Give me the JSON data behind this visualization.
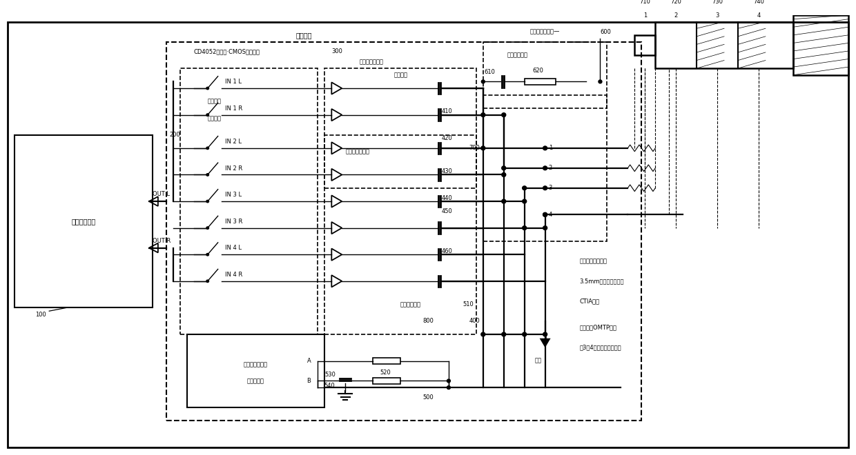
{
  "bg_color": "#ffffff",
  "labels": {
    "audio_app": "音频应用电路",
    "ref_100": "100",
    "ic_label": "集成电路",
    "cd4052_label": "CD4052双四选·CMOS模拟开关",
    "logic_ctrl1": "送辑控制",
    "logic_ctrl2": "切换开关",
    "sw_ctrl1": "开关送辑控制器",
    "sw_ctrl2": "地址位译码",
    "amp_match": "音频放大与匹配",
    "coupling_cap": "耦合电容",
    "mic_amp": "话筒放大与匹配",
    "ctrl_filter": "控制电压滤波",
    "bias_pwr": "馻极体偏置电源—",
    "bias_pos": "偏置电源正极",
    "port_4pin": "四脚音频输入接口",
    "port_35mm": "3.5mm四端子耳机插座",
    "port_ctia": "CTIA接法",
    "port_omtp": "如果改用OMTP方案",
    "port_omtp2": "第3、4端子接线对调即可",
    "gnd_label": "接地",
    "outl": "OUT L",
    "outr": "OUT R",
    "in1l": "IN 1 L",
    "in1r": "IN 1 R",
    "in2l": "IN 2 L",
    "in2r": "IN 2 R",
    "in3l": "IN 3 L",
    "in3r": "IN 3 R",
    "in4l": "IN 4 L",
    "in4r": "IN 4 R",
    "pin_a": "A",
    "pin_b": "B",
    "ref_200": "200",
    "ref_300": "300",
    "ref_400": "400",
    "ref_500": "500",
    "ref_510": "510",
    "ref_520": "520",
    "ref_530": "530",
    "ref_540": "540",
    "ref_600": "600",
    "ref_610": "610",
    "ref_620": "620",
    "ref_700": "700",
    "ref_710": "710",
    "ref_720": "720",
    "ref_730": "730",
    "ref_740": "740",
    "ref_800": "800",
    "ref_410": "410",
    "ref_420": "420",
    "ref_430": "430",
    "ref_440": "440",
    "ref_450": "450",
    "ref_460": "460"
  }
}
